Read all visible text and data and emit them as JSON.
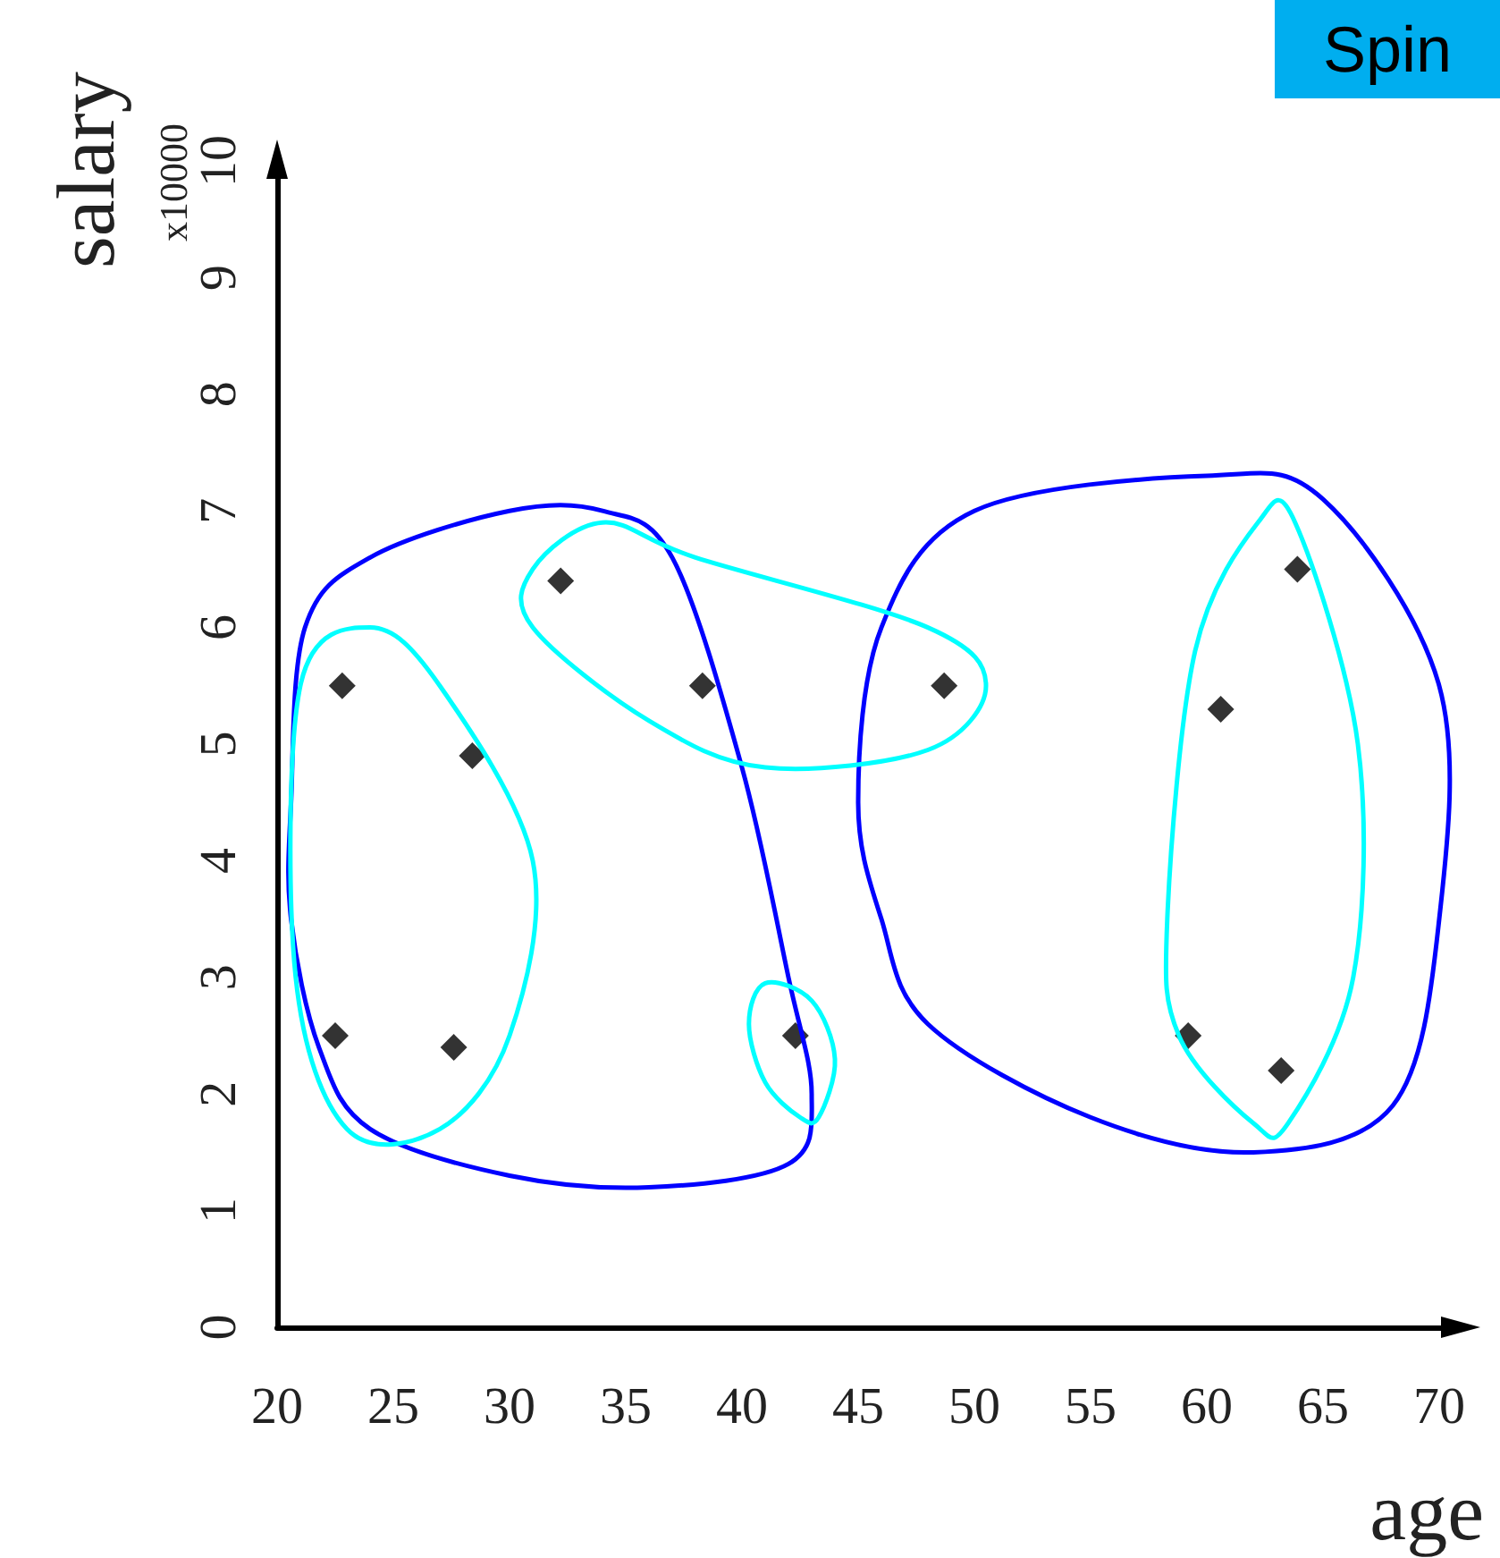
{
  "chart_data": {
    "type": "scatter",
    "xlabel": "age",
    "ylabel": "salary",
    "annotations": [
      "x10000",
      "Spin"
    ],
    "x": [
      22.8,
      28.4,
      22.5,
      27.6,
      32.2,
      38.3,
      48.7,
      42.3,
      60.6,
      63.9,
      59.2,
      63.2
    ],
    "values": [
      5.5,
      4.9,
      2.5,
      2.4,
      6.4,
      5.5,
      5.5,
      2.5,
      5.3,
      6.5,
      2.5,
      2.2
    ],
    "color": "#000000",
    "marker": "diamond",
    "grid": false,
    "xlim": [
      20,
      71
    ],
    "xticks": [
      20,
      25,
      30,
      35,
      40,
      45,
      50,
      55,
      60,
      65,
      70
    ],
    "ylim": [
      0,
      10
    ],
    "yticks": [
      0,
      1,
      2,
      3,
      4,
      5,
      6,
      7,
      8,
      9,
      10
    ]
  }
}
